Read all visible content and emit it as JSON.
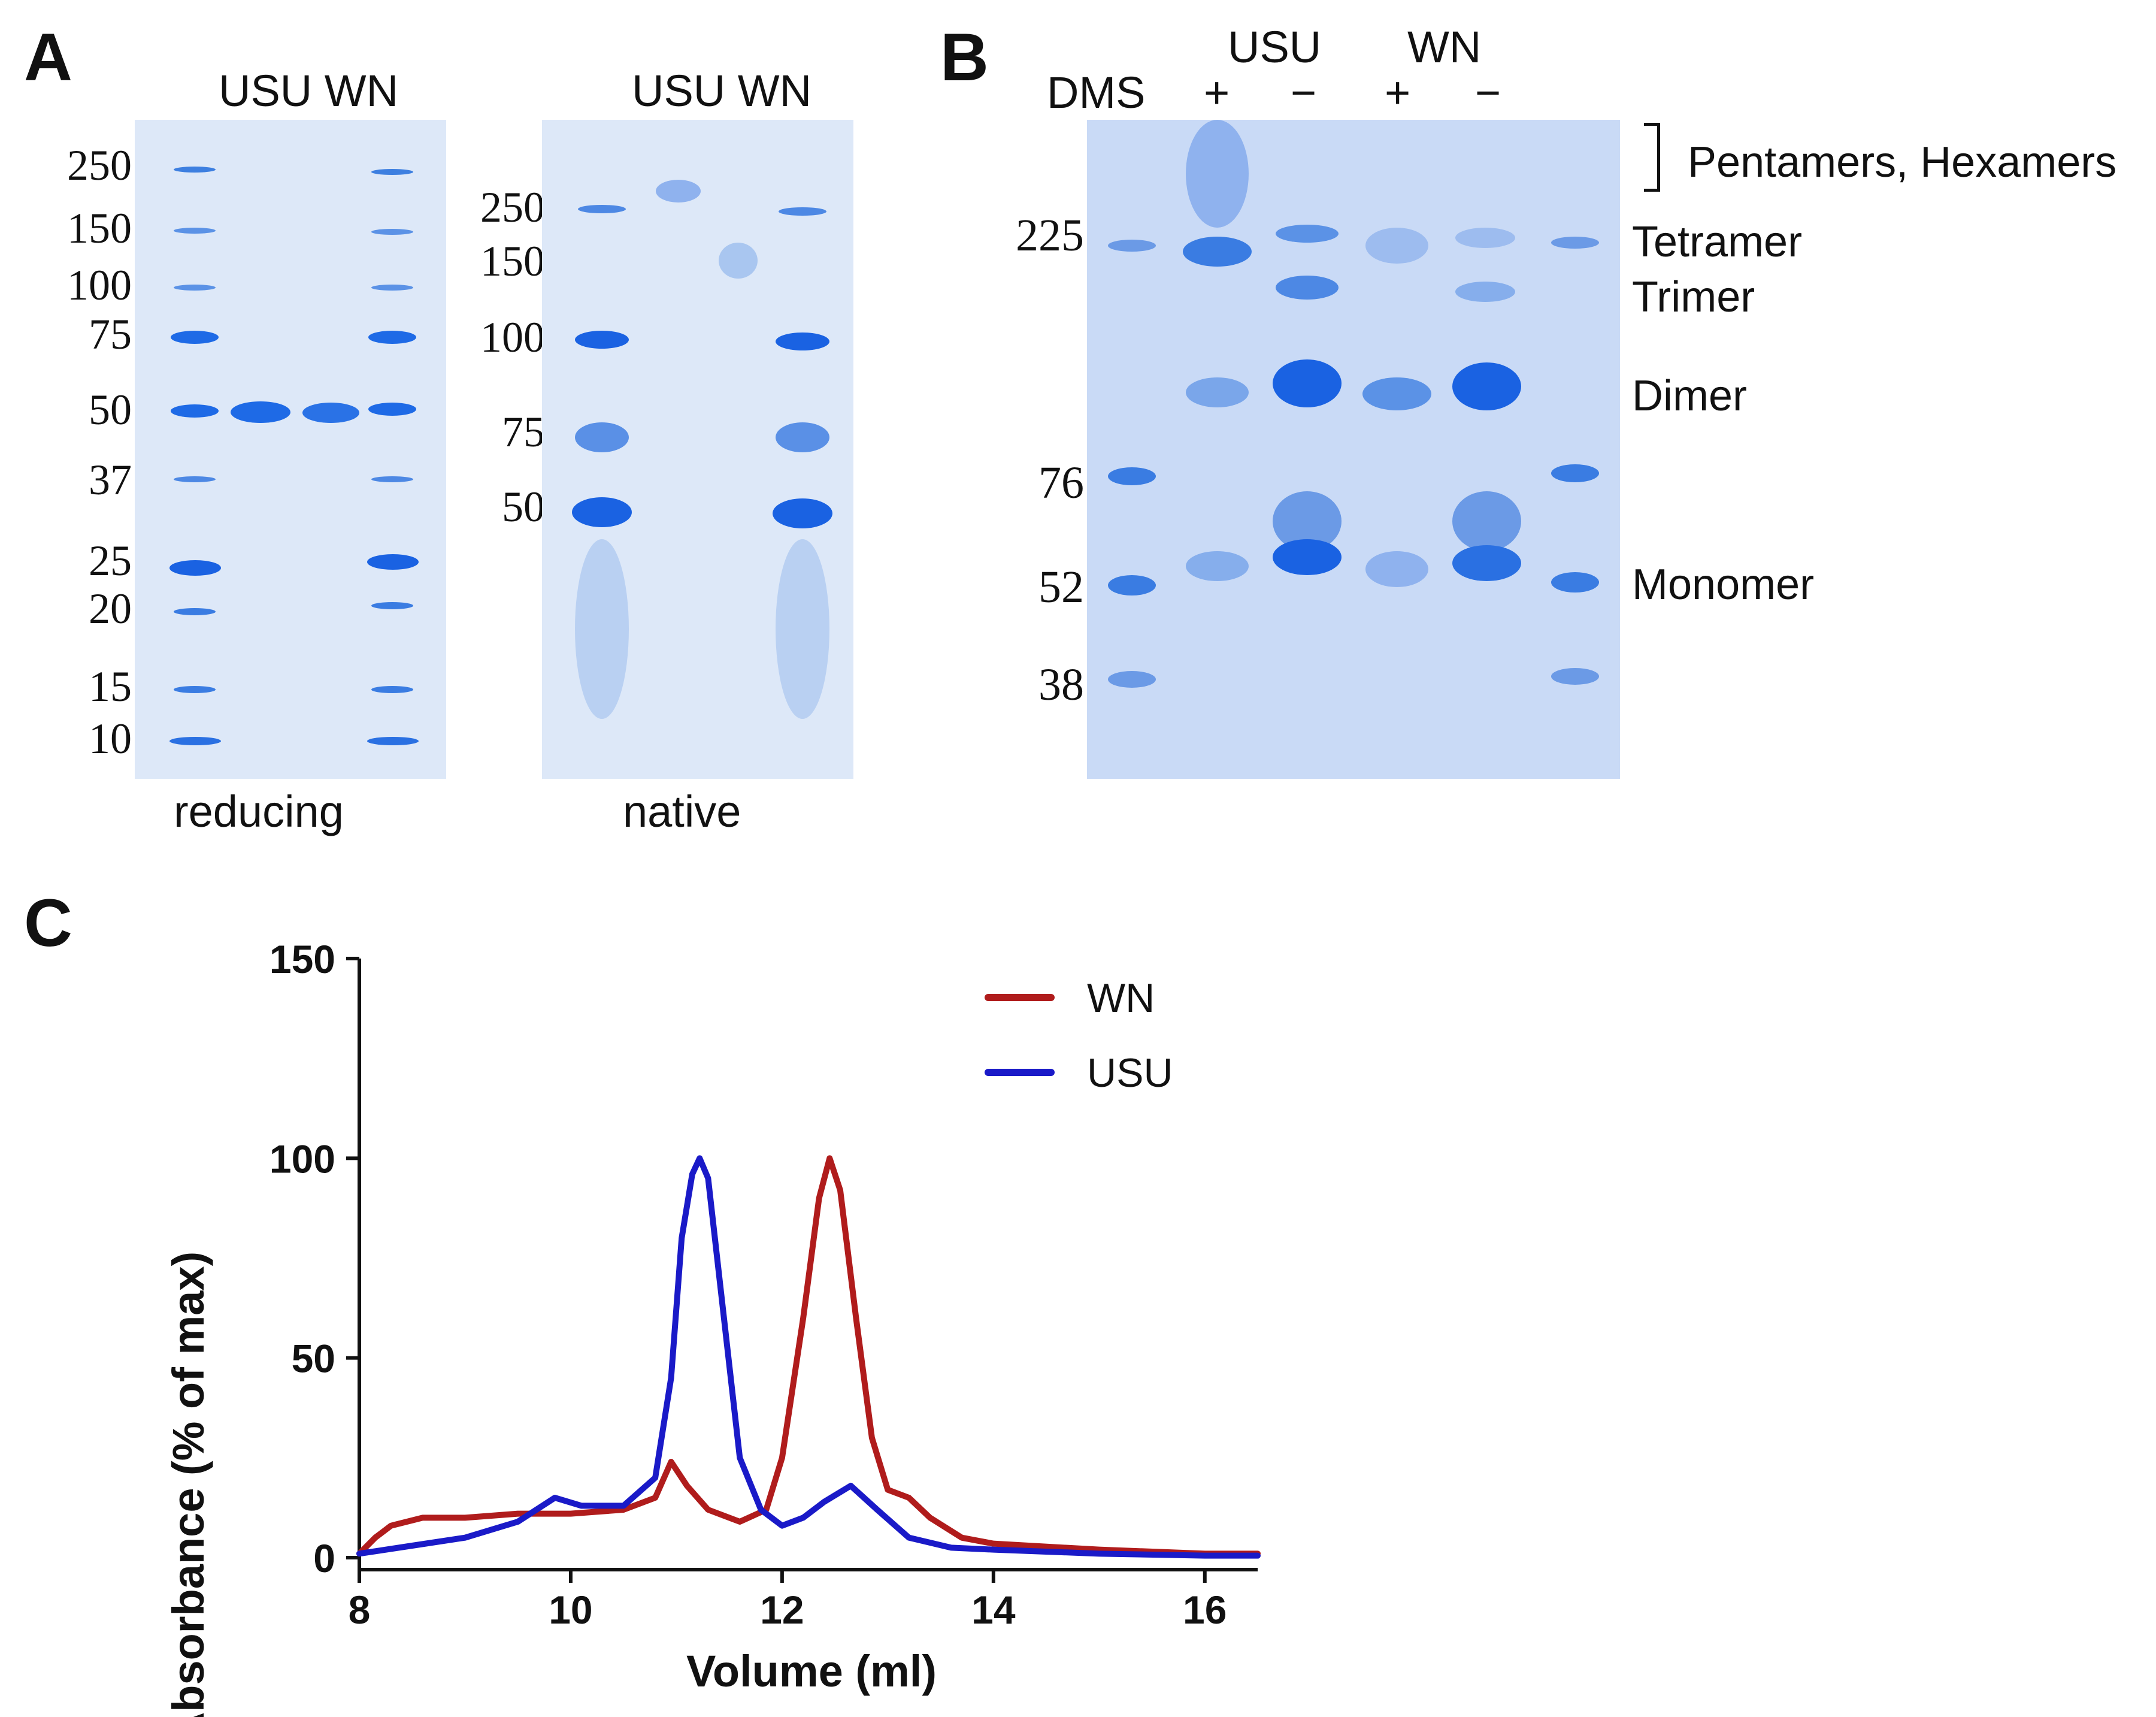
{
  "panelA": {
    "letter": "A",
    "reducing": {
      "header": "USU WN",
      "caption": "reducing",
      "markers": [
        "250",
        "150",
        "100",
        "75",
        "50",
        "37",
        "25",
        "20",
        "15",
        "10"
      ]
    },
    "native": {
      "header": "USU WN",
      "caption": "native",
      "markers": [
        "250",
        "150",
        "100",
        "75",
        "50"
      ]
    }
  },
  "panelB": {
    "letter": "B",
    "dms_label": "DMS",
    "groups": [
      "USU",
      "WN"
    ],
    "signs": [
      "+",
      "−",
      "+",
      "−"
    ],
    "markers": [
      "225",
      "76",
      "52",
      "38"
    ],
    "species": [
      "Pentamers, Hexamers",
      "Tetramer",
      "Trimer",
      "Dimer",
      "Monomer"
    ]
  },
  "panelC": {
    "letter": "C",
    "chart_data": {
      "type": "line",
      "title": "",
      "xlabel": "Volume (ml)",
      "ylabel": "Absorbance (% of max)",
      "xlim": [
        8,
        16.5
      ],
      "ylim": [
        0,
        150
      ],
      "xticks": [
        "8",
        "10",
        "12",
        "14",
        "16"
      ],
      "yticks": [
        "0",
        "50",
        "100",
        "150"
      ],
      "legend_position": "top-right",
      "series": [
        {
          "name": "WN",
          "color": "#b01c1c",
          "x": [
            8.0,
            8.15,
            8.3,
            8.6,
            9.0,
            9.5,
            10.0,
            10.5,
            10.8,
            10.95,
            11.1,
            11.3,
            11.6,
            11.85,
            12.0,
            12.2,
            12.35,
            12.45,
            12.55,
            12.7,
            12.85,
            13.0,
            13.2,
            13.4,
            13.7,
            14.0,
            15.0,
            16.0,
            16.5
          ],
          "y": [
            1,
            5,
            8,
            10,
            10,
            11,
            11,
            12,
            15,
            24,
            18,
            12,
            9,
            12,
            25,
            60,
            90,
            100,
            92,
            60,
            30,
            17,
            15,
            10,
            5,
            3.5,
            2,
            1,
            1
          ]
        },
        {
          "name": "USU",
          "color": "#1a1ac8",
          "x": [
            8.0,
            8.5,
            9.0,
            9.5,
            9.85,
            10.1,
            10.5,
            10.8,
            10.95,
            11.05,
            11.15,
            11.22,
            11.3,
            11.45,
            11.6,
            11.8,
            12.0,
            12.2,
            12.4,
            12.65,
            12.9,
            13.2,
            13.6,
            14.0,
            15.0,
            16.0,
            16.5
          ],
          "y": [
            1,
            3,
            5,
            9,
            15,
            13,
            13,
            20,
            45,
            80,
            96,
            100,
            95,
            60,
            25,
            12,
            8,
            10,
            14,
            18,
            12,
            5,
            2.5,
            2,
            1,
            0.5,
            0.5
          ]
        }
      ]
    }
  }
}
